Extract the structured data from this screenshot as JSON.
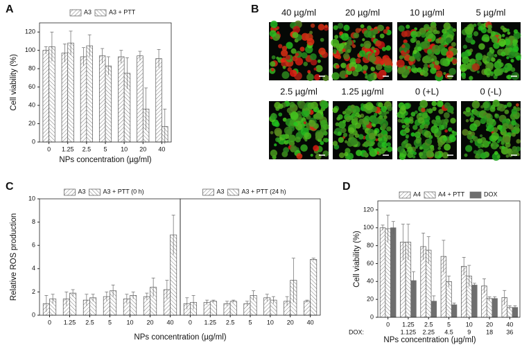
{
  "panel_labels": [
    "A",
    "B",
    "C",
    "D"
  ],
  "micrographs": {
    "labels": [
      "40 µg/ml",
      "20 µg/ml",
      "10 µg/ml",
      "5 µg/ml",
      "2.5 µg/ml",
      "1.25 µg/ml",
      "0 (+L)",
      "0 (-L)"
    ]
  },
  "chart_data": [
    {
      "type": "bar",
      "ylabel": "Cell viability (%)",
      "xlabel": "NPs concentration (µg/ml)",
      "categories": [
        "0",
        "1.25",
        "2.5",
        "5",
        "10",
        "20",
        "40"
      ],
      "ylim": [
        0,
        130
      ],
      "yticks": [
        0,
        20,
        40,
        60,
        80,
        100,
        120
      ],
      "legend": "top",
      "series": [
        {
          "name": "A3",
          "color": "#555555",
          "pattern": "forward",
          "values": [
            100,
            97,
            93,
            94,
            93,
            94,
            91
          ],
          "errors": [
            4,
            10,
            10,
            8,
            7,
            5,
            10
          ]
        },
        {
          "name": "A3 + PTT",
          "color": "#555555",
          "pattern": "backward",
          "values": [
            104,
            108,
            105,
            83,
            75,
            36,
            17
          ],
          "errors": [
            16,
            13,
            12,
            10,
            17,
            23,
            19
          ]
        }
      ]
    },
    {
      "type": "bar",
      "ylabel": "Relative ROS production",
      "xlabel": "NPs concentration (µg/ml)",
      "categories": [
        "0",
        "1.25",
        "2.5",
        "5",
        "10",
        "20",
        "40"
      ],
      "ylim": [
        0,
        10
      ],
      "yticks": [
        0,
        2,
        4,
        6,
        8,
        10
      ],
      "legend": "top",
      "series": [
        {
          "name": "A3",
          "color": "#555555",
          "pattern": "forward",
          "values": [
            1.0,
            1.4,
            1.3,
            1.6,
            1.4,
            1.6,
            2.2
          ],
          "errors": [
            0.7,
            0.6,
            0.5,
            0.4,
            0.4,
            0.3,
            0.8
          ]
        },
        {
          "name": "A3 + PTT (0 h)",
          "color": "#555555",
          "pattern": "backward",
          "values": [
            1.4,
            1.9,
            1.5,
            2.1,
            1.7,
            2.4,
            6.9
          ],
          "errors": [
            0.4,
            0.3,
            0.3,
            0.5,
            0.3,
            0.8,
            1.7
          ]
        }
      ]
    },
    {
      "type": "bar",
      "categories": [
        "0",
        "1.25",
        "2.5",
        "5",
        "10",
        "20",
        "40"
      ],
      "ylim": [
        0,
        10
      ],
      "legend": "top",
      "series": [
        {
          "name": "A3",
          "color": "#555555",
          "pattern": "forward",
          "values": [
            1.0,
            1.1,
            1.0,
            1.0,
            1.5,
            1.2,
            1.2
          ],
          "errors": [
            0.5,
            0.2,
            0.2,
            0.2,
            0.3,
            0.4,
            0.1
          ]
        },
        {
          "name": "A3 + PTT (24 h)",
          "color": "#555555",
          "pattern": "backward",
          "values": [
            1.1,
            1.2,
            1.2,
            1.7,
            1.3,
            3.0,
            4.8
          ],
          "errors": [
            0.6,
            0.1,
            0.1,
            0.4,
            0.3,
            1.9,
            0.1
          ]
        }
      ]
    },
    {
      "type": "bar",
      "ylabel": "Cell viability (%)",
      "xlabel": "NPs concentration (µg/ml)",
      "categories": [
        "0",
        "1.25",
        "2.5",
        "5",
        "10",
        "20",
        "40"
      ],
      "second_row_label": "DOX:",
      "second_row": [
        null,
        "1.125",
        "2.25",
        "4.5",
        "9",
        "18",
        "36"
      ],
      "ylim": [
        0,
        130
      ],
      "yticks": [
        0,
        20,
        40,
        60,
        80,
        100,
        120
      ],
      "legend": "top",
      "series": [
        {
          "name": "A4",
          "color": "#555555",
          "pattern": "forward",
          "values": [
            100,
            84,
            79,
            68,
            57,
            35,
            22
          ],
          "errors": [
            3,
            20,
            15,
            18,
            10,
            8,
            8
          ]
        },
        {
          "name": "A4 + PTT",
          "color": "#555555",
          "pattern": "backward",
          "values": [
            99,
            84,
            75,
            40,
            46,
            21,
            11
          ],
          "errors": [
            15,
            20,
            15,
            6,
            12,
            2,
            2
          ]
        },
        {
          "name": "DOX",
          "color": "#6e6e6e",
          "values": [
            100,
            41,
            18,
            14,
            36,
            21,
            11
          ],
          "errors": [
            7,
            10,
            6,
            2,
            2,
            2,
            2
          ]
        }
      ]
    }
  ]
}
